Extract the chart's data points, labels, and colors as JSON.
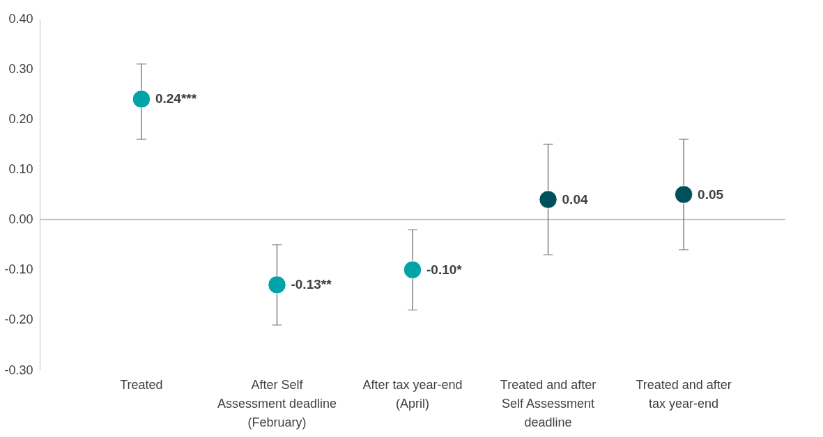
{
  "chart_data": {
    "type": "scatter",
    "categories": [
      "Treated",
      "After Self Assessment deadline (February)",
      "After tax year-end (April)",
      "Treated and after Self Assessment deadline",
      "Treated and after tax year-end"
    ],
    "values": [
      0.24,
      -0.13,
      -0.1,
      0.04,
      0.05
    ],
    "errors": [
      [
        0.16,
        0.31
      ],
      [
        -0.21,
        -0.05
      ],
      [
        -0.18,
        -0.02
      ],
      [
        -0.07,
        0.15
      ],
      [
        -0.06,
        0.16
      ]
    ],
    "colors": [
      "#00a3a6",
      "#00a3a6",
      "#00a3a6",
      "#00505c",
      "#00505c"
    ],
    "value_labels": [
      "0.24***",
      "-0.13**",
      "-0.10*",
      "0.04",
      "0.05"
    ],
    "ylim": [
      -0.3,
      0.4
    ],
    "yticks": [
      {
        "value": -0.3,
        "label": "-0.30"
      },
      {
        "value": -0.2,
        "label": "-0.20"
      },
      {
        "value": -0.1,
        "label": "-0.10"
      },
      {
        "value": 0,
        "label": "0.00"
      },
      {
        "value": 0.1,
        "label": "0.10"
      },
      {
        "value": 0.2,
        "label": "0.20"
      },
      {
        "value": 0.3,
        "label": "0.30"
      },
      {
        "value": 0.4,
        "label": "0.40"
      }
    ],
    "ref_lines": [
      {
        "axis": "y",
        "value": 0,
        "color": "#bfbfbf"
      }
    ],
    "grid": false
  }
}
